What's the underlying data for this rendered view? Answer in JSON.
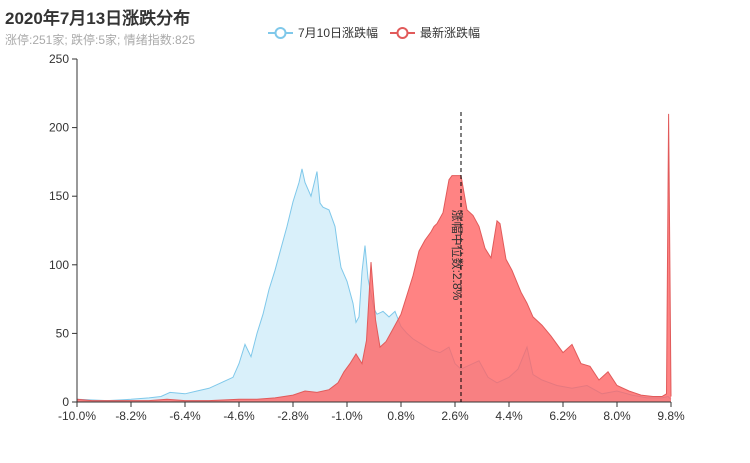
{
  "title": "2020年7月13日涨跌分布",
  "subtitle": "涨停:251家; 跌停:5家; 情绪指数:825",
  "chart_data": {
    "type": "area",
    "x_ticks": [
      "-10.0%",
      "-8.2%",
      "-6.4%",
      "-4.6%",
      "-2.8%",
      "-1.0%",
      "0.8%",
      "2.6%",
      "4.4%",
      "6.2%",
      "8.0%",
      "9.8%"
    ],
    "xlim": [
      -10.0,
      9.8
    ],
    "ylim": [
      0,
      250
    ],
    "y_ticks": [
      0,
      50,
      100,
      150,
      200,
      250
    ],
    "legend_position": "top-center",
    "median_line": {
      "x": 2.8,
      "label": "涨幅中位数:2.8%"
    },
    "series": [
      {
        "name": "7月10日涨跌幅",
        "color": "#7fc8ea",
        "fill": "#d9f0fa",
        "points": [
          [
            -10.0,
            2
          ],
          [
            -9.0,
            1
          ],
          [
            -8.2,
            2
          ],
          [
            -7.6,
            3
          ],
          [
            -7.2,
            4
          ],
          [
            -6.9,
            7
          ],
          [
            -6.4,
            6
          ],
          [
            -6.0,
            8
          ],
          [
            -5.6,
            10
          ],
          [
            -5.2,
            14
          ],
          [
            -4.8,
            18
          ],
          [
            -4.6,
            28
          ],
          [
            -4.4,
            42
          ],
          [
            -4.2,
            33
          ],
          [
            -4.0,
            50
          ],
          [
            -3.8,
            64
          ],
          [
            -3.6,
            82
          ],
          [
            -3.4,
            96
          ],
          [
            -3.2,
            112
          ],
          [
            -3.0,
            128
          ],
          [
            -2.8,
            146
          ],
          [
            -2.6,
            160
          ],
          [
            -2.5,
            170
          ],
          [
            -2.4,
            160
          ],
          [
            -2.2,
            150
          ],
          [
            -2.0,
            168
          ],
          [
            -1.9,
            145
          ],
          [
            -1.8,
            142
          ],
          [
            -1.6,
            140
          ],
          [
            -1.4,
            128
          ],
          [
            -1.3,
            112
          ],
          [
            -1.2,
            98
          ],
          [
            -1.0,
            88
          ],
          [
            -0.8,
            72
          ],
          [
            -0.7,
            58
          ],
          [
            -0.6,
            62
          ],
          [
            -0.5,
            95
          ],
          [
            -0.4,
            114
          ],
          [
            -0.3,
            90
          ],
          [
            -0.1,
            68
          ],
          [
            0.0,
            64
          ],
          [
            0.2,
            66
          ],
          [
            0.4,
            62
          ],
          [
            0.6,
            66
          ],
          [
            0.8,
            55
          ],
          [
            1.0,
            50
          ],
          [
            1.2,
            46
          ],
          [
            1.5,
            42
          ],
          [
            1.8,
            38
          ],
          [
            2.1,
            36
          ],
          [
            2.4,
            40
          ],
          [
            2.6,
            28
          ],
          [
            2.8,
            24
          ],
          [
            3.0,
            26
          ],
          [
            3.4,
            30
          ],
          [
            3.7,
            18
          ],
          [
            4.0,
            14
          ],
          [
            4.4,
            18
          ],
          [
            4.7,
            24
          ],
          [
            5.0,
            40
          ],
          [
            5.2,
            20
          ],
          [
            5.5,
            16
          ],
          [
            6.0,
            12
          ],
          [
            6.5,
            10
          ],
          [
            7.0,
            12
          ],
          [
            7.5,
            6
          ],
          [
            8.0,
            8
          ],
          [
            8.5,
            5
          ],
          [
            9.0,
            3
          ],
          [
            9.5,
            3
          ],
          [
            9.7,
            4
          ],
          [
            9.8,
            2
          ]
        ]
      },
      {
        "name": "最新涨跌幅",
        "color": "#e15a5a",
        "fill": "rgba(255, 100, 100, 0.80)",
        "points": [
          [
            -10.0,
            2
          ],
          [
            -9.5,
            1
          ],
          [
            -8.8,
            1
          ],
          [
            -8.2,
            1
          ],
          [
            -7.6,
            1
          ],
          [
            -7.0,
            2
          ],
          [
            -6.4,
            1
          ],
          [
            -5.6,
            1
          ],
          [
            -4.6,
            2
          ],
          [
            -4.0,
            2
          ],
          [
            -3.4,
            3
          ],
          [
            -2.8,
            5
          ],
          [
            -2.4,
            8
          ],
          [
            -2.0,
            7
          ],
          [
            -1.6,
            9
          ],
          [
            -1.3,
            14
          ],
          [
            -1.1,
            22
          ],
          [
            -0.9,
            28
          ],
          [
            -0.7,
            35
          ],
          [
            -0.5,
            28
          ],
          [
            -0.35,
            45
          ],
          [
            -0.2,
            102
          ],
          [
            -0.05,
            60
          ],
          [
            0.1,
            40
          ],
          [
            0.3,
            44
          ],
          [
            0.5,
            52
          ],
          [
            0.8,
            64
          ],
          [
            1.0,
            78
          ],
          [
            1.2,
            92
          ],
          [
            1.4,
            110
          ],
          [
            1.6,
            118
          ],
          [
            1.8,
            124
          ],
          [
            1.9,
            128
          ],
          [
            2.0,
            130
          ],
          [
            2.2,
            138
          ],
          [
            2.4,
            162
          ],
          [
            2.5,
            165
          ],
          [
            2.8,
            165
          ],
          [
            3.0,
            140
          ],
          [
            3.2,
            136
          ],
          [
            3.4,
            128
          ],
          [
            3.6,
            112
          ],
          [
            3.8,
            105
          ],
          [
            4.0,
            132
          ],
          [
            4.1,
            130
          ],
          [
            4.3,
            104
          ],
          [
            4.5,
            96
          ],
          [
            4.8,
            80
          ],
          [
            5.0,
            72
          ],
          [
            5.2,
            62
          ],
          [
            5.5,
            56
          ],
          [
            5.8,
            48
          ],
          [
            6.2,
            36
          ],
          [
            6.5,
            42
          ],
          [
            6.8,
            28
          ],
          [
            7.1,
            26
          ],
          [
            7.4,
            16
          ],
          [
            7.7,
            22
          ],
          [
            8.0,
            12
          ],
          [
            8.4,
            8
          ],
          [
            8.8,
            5
          ],
          [
            9.2,
            4
          ],
          [
            9.5,
            4
          ],
          [
            9.65,
            6
          ],
          [
            9.72,
            210
          ],
          [
            9.8,
            4
          ]
        ]
      }
    ]
  }
}
